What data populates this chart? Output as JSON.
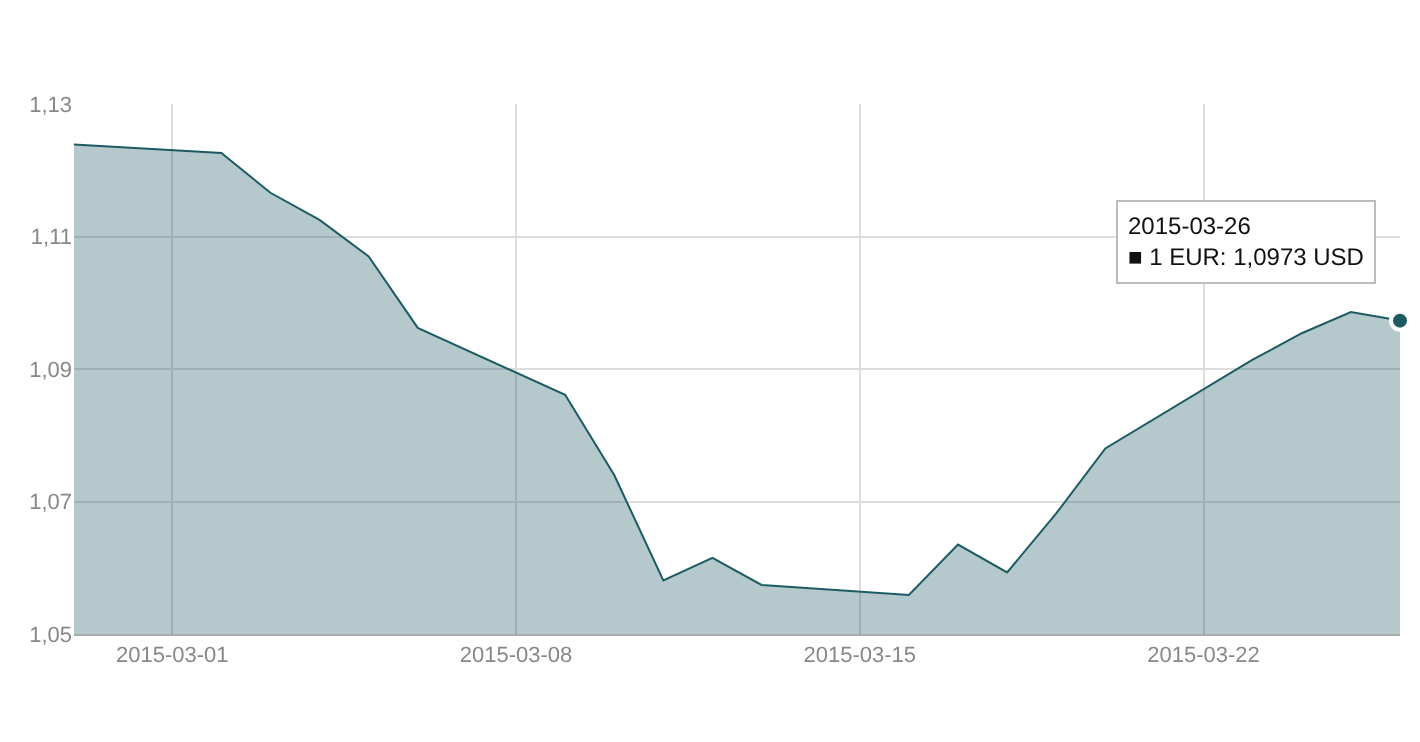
{
  "chart_data": {
    "type": "area",
    "x": [
      "2015-02-27",
      "2015-03-02",
      "2015-03-03",
      "2015-03-04",
      "2015-03-05",
      "2015-03-06",
      "2015-03-09",
      "2015-03-10",
      "2015-03-11",
      "2015-03-12",
      "2015-03-13",
      "2015-03-16",
      "2015-03-17",
      "2015-03-18",
      "2015-03-19",
      "2015-03-20",
      "2015-03-23",
      "2015-03-24",
      "2015-03-25",
      "2015-03-26"
    ],
    "series": [
      {
        "color": "#1d5b63",
        "values": [
          1.1239,
          1.1226,
          1.1166,
          1.1125,
          1.107,
          1.0962,
          1.0861,
          1.074,
          1.0581,
          1.0615,
          1.0574,
          1.0559,
          1.0635,
          1.0593,
          1.0682,
          1.078,
          1.0914,
          1.0954,
          1.0986,
          1.0973
        ]
      }
    ],
    "xlim": [
      "2015-02-27",
      "2015-03-26"
    ],
    "xticks": [
      {
        "value": "2015-03-01",
        "label": "2015-03-01"
      },
      {
        "value": "2015-03-08",
        "label": "2015-03-08"
      },
      {
        "value": "2015-03-15",
        "label": "2015-03-15"
      },
      {
        "value": "2015-03-22",
        "label": "2015-03-22"
      }
    ],
    "ylim": [
      1.05,
      1.13
    ],
    "yticks": [
      {
        "value": 1.05,
        "label": "1,05"
      },
      {
        "value": 1.07,
        "label": "1,07"
      },
      {
        "value": 1.09,
        "label": "1,09"
      },
      {
        "value": 1.11,
        "label": "1,11"
      },
      {
        "value": 1.13,
        "label": "1,13"
      }
    ],
    "annotations": [
      {
        "text": "2015-03-26\n■ 1 EUR: 1,0973 USD",
        "x": "2015-03-26",
        "y": 1.0973
      }
    ],
    "grid": true,
    "marker": "none",
    "line_style": "solid"
  }
}
